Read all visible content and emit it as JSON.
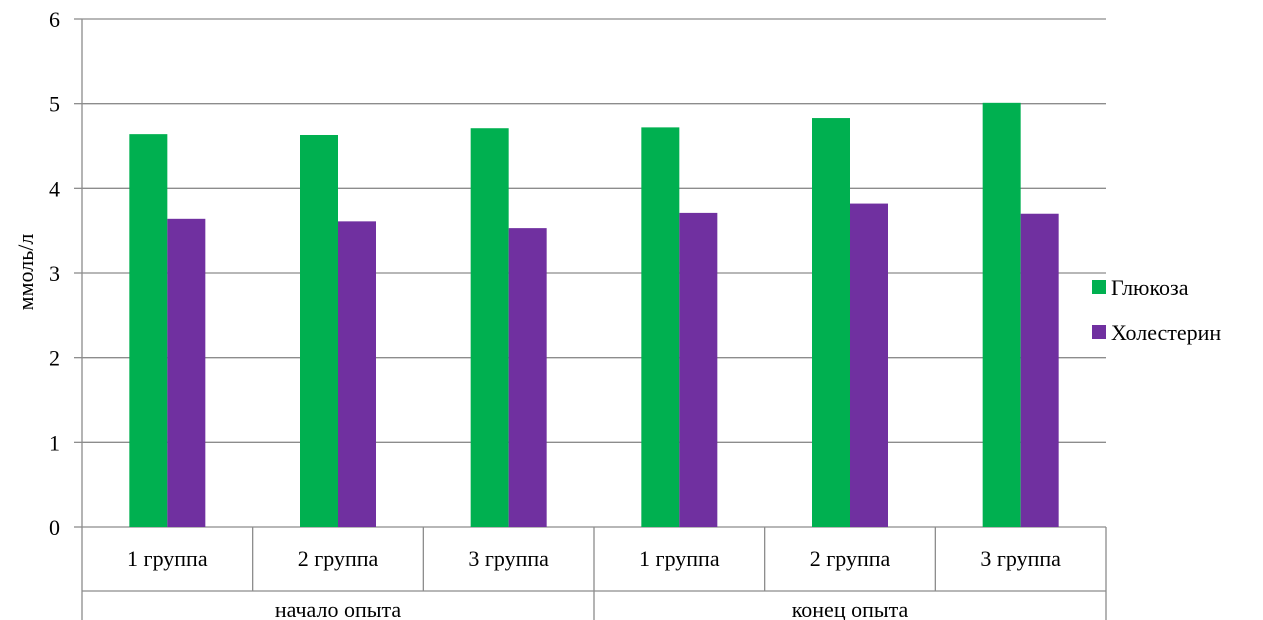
{
  "chart_data": {
    "type": "bar",
    "ylabel": "ммоль/л",
    "ylim": [
      0,
      6
    ],
    "yticks": [
      0,
      1,
      2,
      3,
      4,
      5,
      6
    ],
    "grid": true,
    "legend_position": "right",
    "categories": [
      "1 группа",
      "2 группа",
      "3 группа",
      "1 группа",
      "2 группа",
      "3 группа"
    ],
    "groups": [
      {
        "label": "начало опыта",
        "span": 3
      },
      {
        "label": "конец опыта",
        "span": 3
      }
    ],
    "series": [
      {
        "name": "Глюкоза",
        "color": "#00b050",
        "values": [
          4.64,
          4.63,
          4.71,
          4.72,
          4.83,
          5.01
        ]
      },
      {
        "name": "Холестерин",
        "color": "#7030a0",
        "values": [
          3.64,
          3.61,
          3.53,
          3.71,
          3.82,
          3.7
        ]
      }
    ]
  }
}
